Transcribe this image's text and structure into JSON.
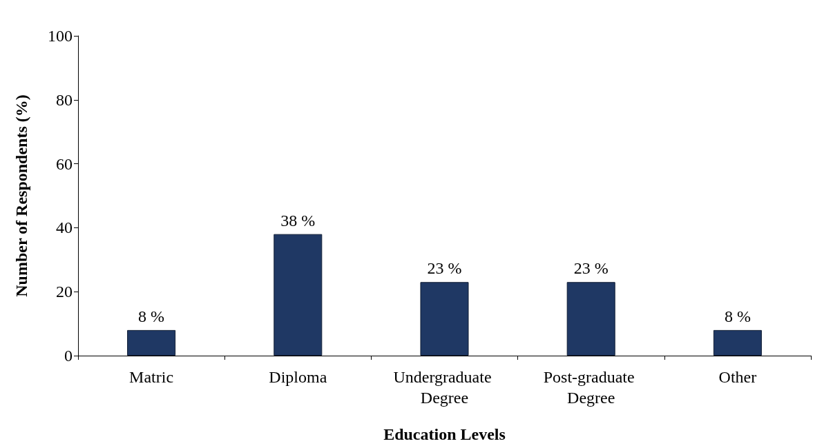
{
  "chart_data": {
    "type": "bar",
    "xlabel": "Education Levels",
    "ylabel": "Number of Respondents (%)",
    "categories": [
      "Matric",
      "Diploma",
      "Undergraduate Degree",
      "Post-graduate Degree",
      "Other"
    ],
    "values": [
      8,
      38,
      23,
      23,
      8
    ],
    "value_labels": [
      "8 %",
      "38 %",
      "23 %",
      "23 %",
      "8 %"
    ],
    "color": "#1f3864",
    "ylim": [
      0,
      100
    ],
    "yticks": [
      0,
      20,
      40,
      60,
      80,
      100
    ],
    "grid": false
  }
}
